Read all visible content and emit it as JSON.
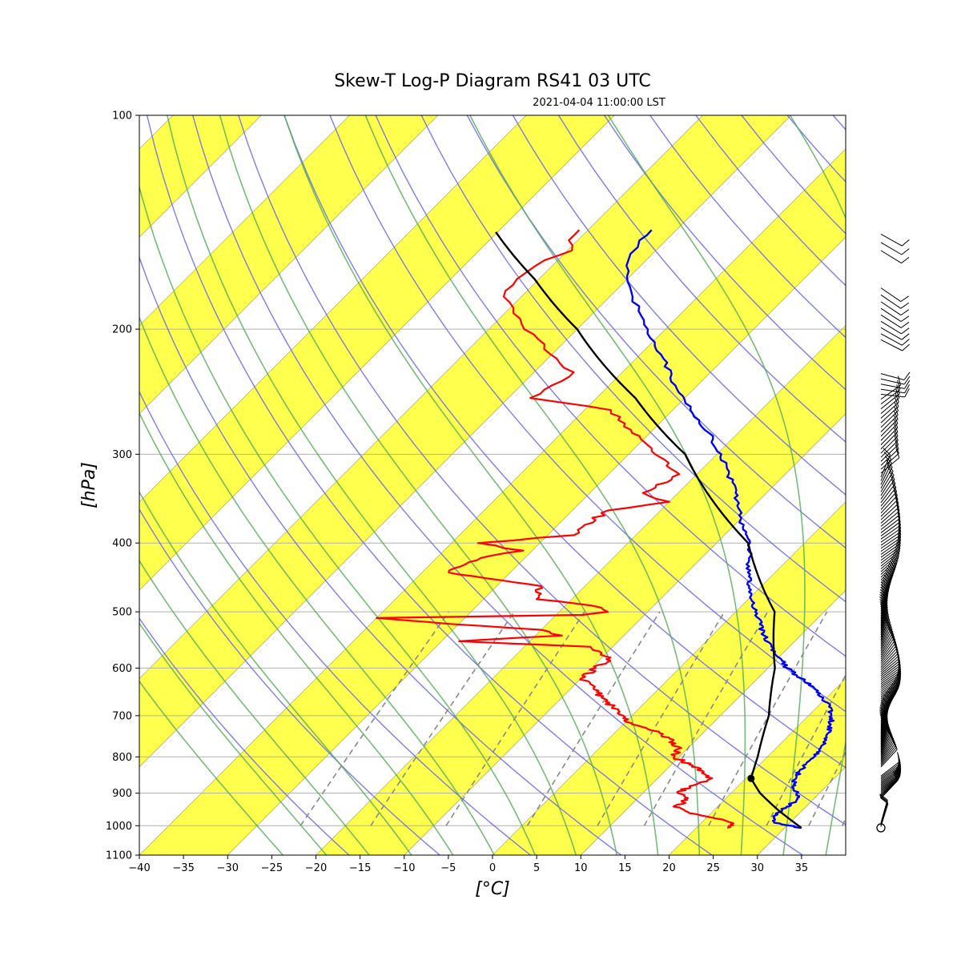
{
  "title": "Skew-T Log-P Diagram RS41 03 UTC",
  "subtitle": "2021-04-04 11:00:00 LST",
  "chart_data": {
    "type": "line",
    "subtype": "skew-t log-p",
    "xlabel": "[°C]",
    "ylabel": "[hPa]",
    "xlim": [
      -40,
      40
    ],
    "ylim": [
      1100,
      100
    ],
    "y_scale": "log",
    "x_ticks": [
      -40,
      -35,
      -30,
      -25,
      -20,
      -15,
      -10,
      -5,
      0,
      5,
      10,
      15,
      20,
      25,
      30,
      35
    ],
    "y_ticks": [
      100,
      200,
      300,
      400,
      500,
      600,
      700,
      800,
      900,
      1000,
      1100
    ],
    "grid": true,
    "background_bands": "alternating yellow / white isotherm bands",
    "reference_lines": {
      "dry_adiabats": "blue",
      "moist_adiabats": "green",
      "mixing_ratio": "gray dashed"
    },
    "colors": {
      "temperature": "#0000ff",
      "dewpoint": "#ff0000",
      "parcel": "#000000",
      "band": "#ffff4d",
      "dry_adiabat": "#6666ee",
      "moist_adiabat": "#55aa55",
      "mixing_ratio": "#888888"
    },
    "series": [
      {
        "key": "temperature",
        "points": [
          [
            1007,
            31.9
          ],
          [
            990,
            28.2
          ],
          [
            970,
            27.4
          ],
          [
            950,
            27.7
          ],
          [
            920,
            28.2
          ],
          [
            900,
            27.5
          ],
          [
            880,
            26.2
          ],
          [
            860,
            25.7
          ],
          [
            840,
            25.3
          ],
          [
            820,
            25.2
          ],
          [
            800,
            25.3
          ],
          [
            780,
            25.0
          ],
          [
            760,
            24.7
          ],
          [
            740,
            24.2
          ],
          [
            720,
            23.5
          ],
          [
            700,
            22.6
          ],
          [
            680,
            21.3
          ],
          [
            660,
            19.6
          ],
          [
            640,
            17.5
          ],
          [
            620,
            14.9
          ],
          [
            600,
            12.2
          ],
          [
            580,
            10.1
          ],
          [
            560,
            8.0
          ],
          [
            540,
            5.9
          ],
          [
            520,
            4.1
          ],
          [
            500,
            2.2
          ],
          [
            480,
            0.3
          ],
          [
            460,
            -1.4
          ],
          [
            440,
            -3.1
          ],
          [
            420,
            -4.6
          ],
          [
            400,
            -6.2
          ],
          [
            380,
            -8.8
          ],
          [
            360,
            -11.0
          ],
          [
            340,
            -13.5
          ],
          [
            320,
            -16.4
          ],
          [
            300,
            -19.5
          ],
          [
            280,
            -23.3
          ],
          [
            260,
            -28.0
          ],
          [
            240,
            -32.5
          ],
          [
            220,
            -36.9
          ],
          [
            200,
            -42.0
          ],
          [
            180,
            -47.4
          ],
          [
            160,
            -52.0
          ],
          [
            150,
            -53.0
          ],
          [
            145,
            -52.8
          ]
        ]
      },
      {
        "key": "dewpoint",
        "points": [
          [
            1007,
            23.5
          ],
          [
            995,
            23.5
          ],
          [
            980,
            22.0
          ],
          [
            960,
            17.5
          ],
          [
            940,
            15.0
          ],
          [
            920,
            15.8
          ],
          [
            900,
            14.0
          ],
          [
            880,
            14.5
          ],
          [
            860,
            16.0
          ],
          [
            840,
            14.5
          ],
          [
            820,
            12.0
          ],
          [
            800,
            9.5
          ],
          [
            780,
            9.0
          ],
          [
            760,
            7.5
          ],
          [
            740,
            5.0
          ],
          [
            720,
            1.0
          ],
          [
            700,
            -1.0
          ],
          [
            680,
            -3.2
          ],
          [
            660,
            -5.5
          ],
          [
            640,
            -7.5
          ],
          [
            620,
            -10.0
          ],
          [
            600,
            -9.5
          ],
          [
            580,
            -9.0
          ],
          [
            560,
            -12.5
          ],
          [
            550,
            -28.0
          ],
          [
            540,
            -17.0
          ],
          [
            530,
            -20.0
          ],
          [
            520,
            -31.0
          ],
          [
            510,
            -40.0
          ],
          [
            505,
            -17.0
          ],
          [
            500,
            -14.5
          ],
          [
            490,
            -17.0
          ],
          [
            480,
            -24.0
          ],
          [
            460,
            -25.0
          ],
          [
            440,
            -37.0
          ],
          [
            420,
            -35.0
          ],
          [
            410,
            -31.0
          ],
          [
            400,
            -37.0
          ],
          [
            390,
            -27.0
          ],
          [
            380,
            -27.0
          ],
          [
            360,
            -26.0
          ],
          [
            350,
            -20.0
          ],
          [
            340,
            -24.0
          ],
          [
            320,
            -22.0
          ],
          [
            300,
            -27.0
          ],
          [
            280,
            -32.0
          ],
          [
            260,
            -37.0
          ],
          [
            250,
            -47.5
          ],
          [
            240,
            -46.5
          ],
          [
            230,
            -45.5
          ],
          [
            220,
            -49.0
          ],
          [
            210,
            -52.0
          ],
          [
            200,
            -56.0
          ],
          [
            190,
            -59.0
          ],
          [
            180,
            -62.0
          ],
          [
            170,
            -62.5
          ],
          [
            160,
            -61.5
          ],
          [
            155,
            -59.5
          ],
          [
            150,
            -61.0
          ],
          [
            145,
            -61.0
          ]
        ]
      },
      {
        "key": "parcel",
        "points": [
          [
            1007,
            31.9
          ],
          [
            950,
            27.2
          ],
          [
            900,
            23.3
          ],
          [
            858,
            20.6
          ],
          [
            800,
            18.9
          ],
          [
            700,
            15.5
          ],
          [
            600,
            10.8
          ],
          [
            500,
            4.4
          ],
          [
            400,
            -6.4
          ],
          [
            300,
            -23.6
          ],
          [
            250,
            -35.6
          ],
          [
            200,
            -50.0
          ],
          [
            170,
            -60.5
          ],
          [
            146,
            -70.2
          ]
        ]
      }
    ],
    "lcl_pressure": 858,
    "wind_barbs": "profile of wind barbs along right side, 1007 hPa to 145 hPa"
  }
}
